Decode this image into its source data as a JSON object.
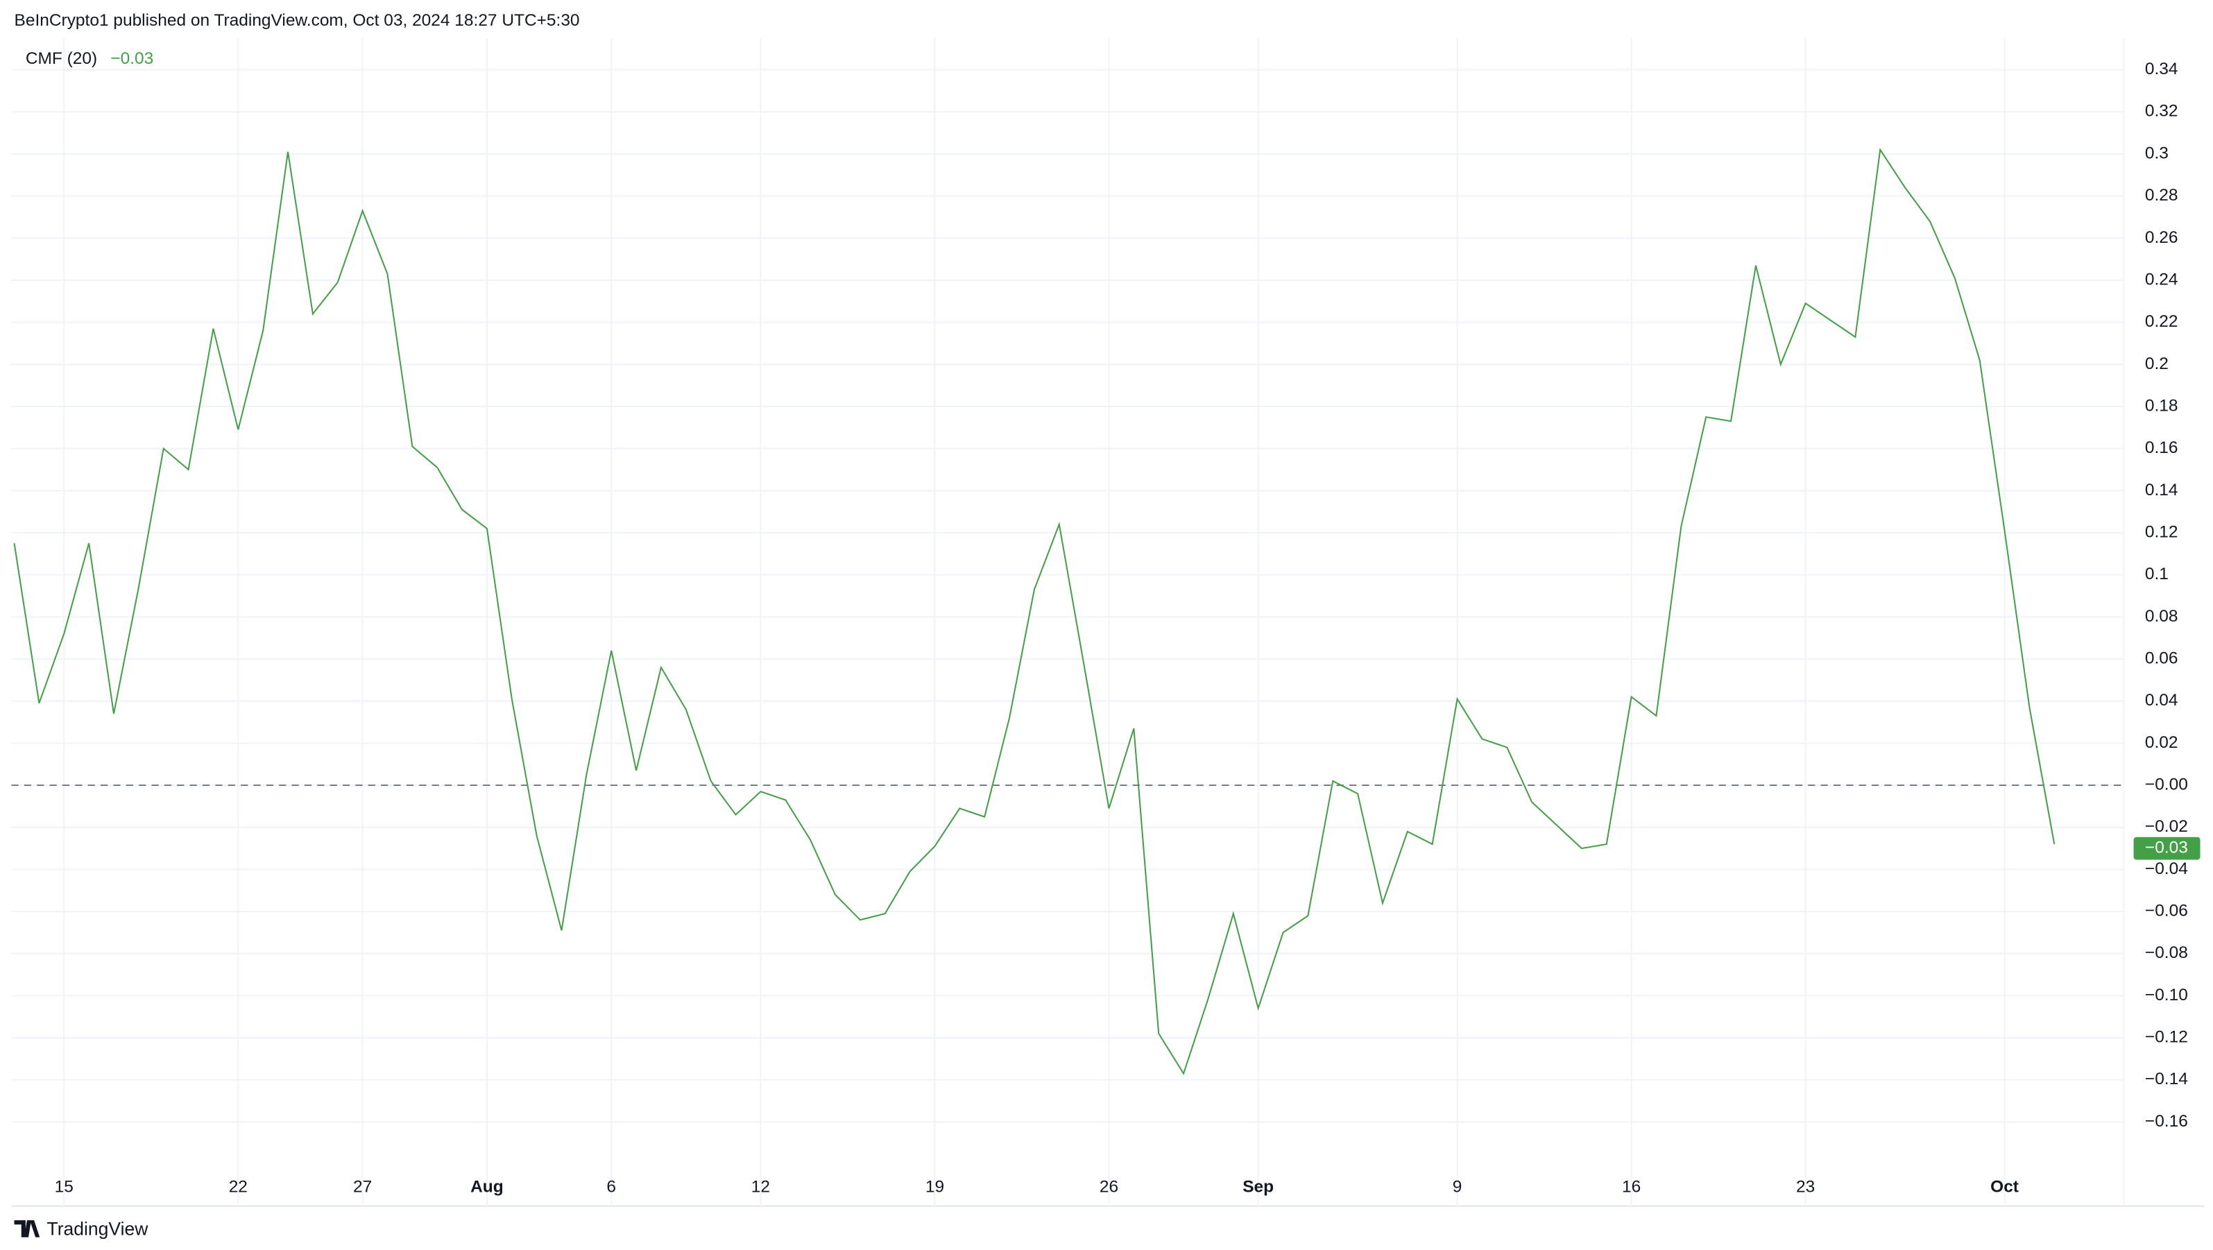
{
  "header": {
    "text": "BeInCrypto1 published on TradingView.com, Oct 03, 2024 18:27 UTC+5:30"
  },
  "footer": {
    "brand": "TradingView"
  },
  "chart_data": {
    "type": "line",
    "categories": [
      null,
      null,
      "15",
      null,
      null,
      null,
      null,
      null,
      null,
      "22",
      null,
      null,
      null,
      null,
      "27",
      null,
      null,
      null,
      null,
      "Aug",
      null,
      null,
      null,
      null,
      "6",
      null,
      null,
      null,
      null,
      null,
      "12",
      null,
      null,
      null,
      null,
      null,
      null,
      "19",
      null,
      null,
      null,
      null,
      null,
      null,
      "26",
      null,
      null,
      null,
      null,
      null,
      "Sep",
      null,
      null,
      null,
      null,
      null,
      null,
      null,
      "9",
      null,
      null,
      null,
      null,
      null,
      null,
      "16",
      null,
      null,
      null,
      null,
      null,
      null,
      "23",
      null,
      null,
      null,
      null,
      null,
      null,
      null,
      "Oct",
      null,
      null
    ],
    "series": [
      {
        "name": "CMF (20)",
        "color": "#43a047",
        "values": [
          0.115,
          0.039,
          0.072,
          0.115,
          0.034,
          0.094,
          0.16,
          0.15,
          0.217,
          0.169,
          0.216,
          0.301,
          0.224,
          0.239,
          0.273,
          0.243,
          0.161,
          0.151,
          0.131,
          0.122,
          0.041,
          -0.024,
          -0.069,
          0.005,
          0.064,
          0.007,
          0.056,
          0.036,
          0.002,
          -0.014,
          -0.003,
          -0.007,
          -0.026,
          -0.052,
          -0.064,
          -0.061,
          -0.041,
          -0.029,
          -0.011,
          -0.015,
          0.032,
          0.093,
          0.124,
          0.057,
          -0.011,
          0.027,
          -0.118,
          -0.137,
          -0.101,
          -0.061,
          -0.106,
          -0.07,
          -0.062,
          0.002,
          -0.004,
          -0.056,
          -0.022,
          -0.028,
          0.041,
          0.022,
          0.018,
          -0.008,
          -0.019,
          -0.03,
          -0.028,
          0.042,
          0.033,
          0.123,
          0.175,
          0.173,
          0.247,
          0.2,
          0.229,
          0.221,
          0.213,
          0.302,
          0.284,
          0.268,
          0.241,
          0.202,
          0.121,
          0.037,
          -0.028
        ],
        "current_value": -0.03,
        "current_value_label": "−0.03"
      }
    ],
    "baseline": 0,
    "ylim": [
      -0.2,
      0.355
    ],
    "yticks": [
      0.34,
      0.32,
      0.3,
      0.28,
      0.26,
      0.24,
      0.22,
      0.2,
      0.18,
      0.16,
      0.14,
      0.12,
      0.1,
      0.08,
      0.06,
      0.04,
      0.02,
      {
        "value": 0,
        "label": "−0.00"
      },
      {
        "value": -0.02,
        "label": "−0.02"
      },
      {
        "value": -0.04,
        "label": "−0.04"
      },
      {
        "value": -0.06,
        "label": "−0.06"
      },
      {
        "value": -0.08,
        "label": "−0.08"
      },
      {
        "value": -0.1,
        "label": "−0.10"
      },
      {
        "value": -0.12,
        "label": "−0.12"
      },
      {
        "value": -0.14,
        "label": "−0.14"
      },
      {
        "value": -0.16,
        "label": "−0.16"
      }
    ],
    "grid": true
  }
}
